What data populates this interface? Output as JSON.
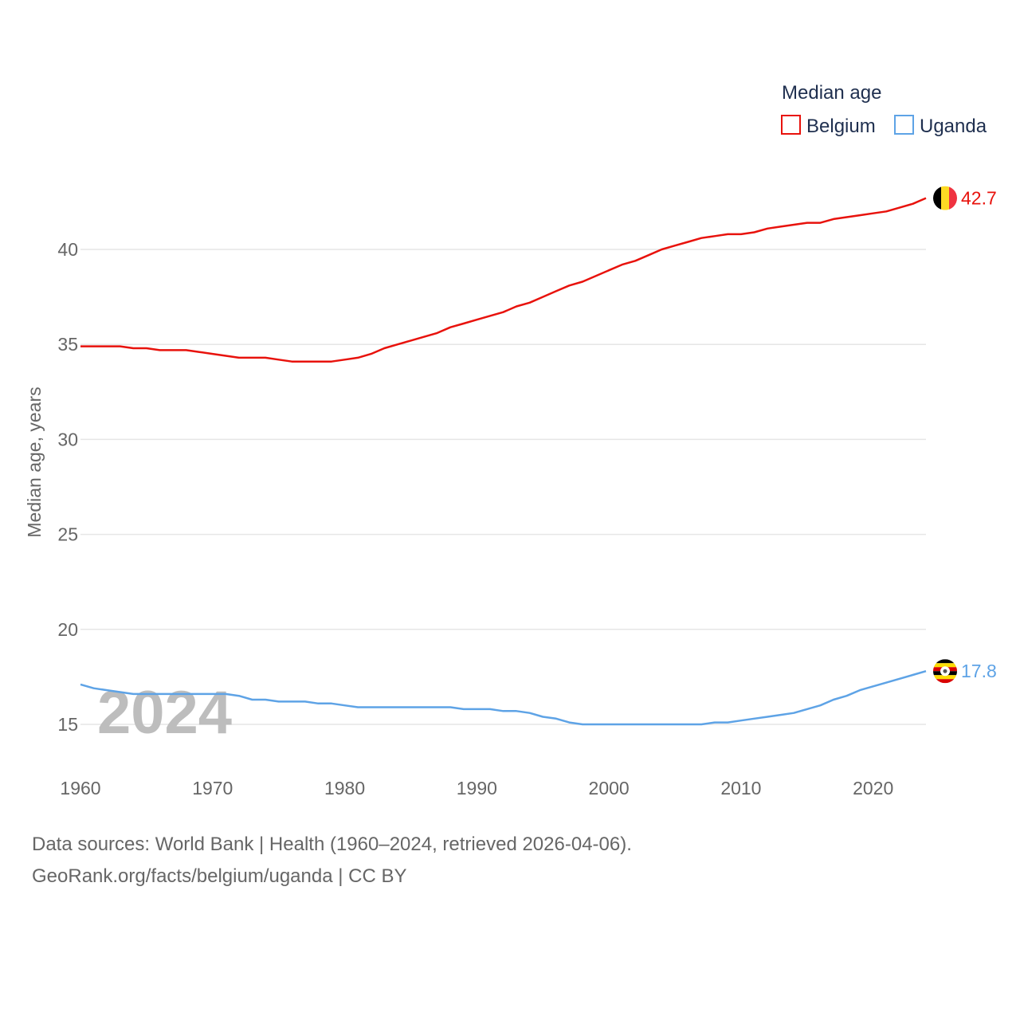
{
  "chart_data": {
    "type": "line",
    "legend_title": "Median age",
    "ylabel": "Median age, years",
    "xlabel": "",
    "xlim": [
      1960,
      2024
    ],
    "ylim": [
      13,
      44
    ],
    "y_ticks": [
      15,
      20,
      25,
      30,
      35,
      40
    ],
    "x_ticks": [
      1960,
      1970,
      1980,
      1990,
      2000,
      2010,
      2020
    ],
    "year_watermark": "2024",
    "grid": true,
    "legend_position": "top-right",
    "series": [
      {
        "name": "Belgium",
        "color": "#e8120c",
        "flag": "belgium-flag-icon",
        "end_label": "42.7",
        "x": [
          1960,
          1961,
          1962,
          1963,
          1964,
          1965,
          1966,
          1967,
          1968,
          1969,
          1970,
          1971,
          1972,
          1973,
          1974,
          1975,
          1976,
          1977,
          1978,
          1979,
          1980,
          1981,
          1982,
          1983,
          1984,
          1985,
          1986,
          1987,
          1988,
          1989,
          1990,
          1991,
          1992,
          1993,
          1994,
          1995,
          1996,
          1997,
          1998,
          1999,
          2000,
          2001,
          2002,
          2003,
          2004,
          2005,
          2006,
          2007,
          2008,
          2009,
          2010,
          2011,
          2012,
          2013,
          2014,
          2015,
          2016,
          2017,
          2018,
          2019,
          2020,
          2021,
          2022,
          2023,
          2024
        ],
        "values": [
          34.9,
          34.9,
          34.9,
          34.9,
          34.8,
          34.8,
          34.7,
          34.7,
          34.7,
          34.6,
          34.5,
          34.4,
          34.3,
          34.3,
          34.3,
          34.2,
          34.1,
          34.1,
          34.1,
          34.1,
          34.2,
          34.3,
          34.5,
          34.8,
          35.0,
          35.2,
          35.4,
          35.6,
          35.9,
          36.1,
          36.3,
          36.5,
          36.7,
          37.0,
          37.2,
          37.5,
          37.8,
          38.1,
          38.3,
          38.6,
          38.9,
          39.2,
          39.4,
          39.7,
          40.0,
          40.2,
          40.4,
          40.6,
          40.7,
          40.8,
          40.8,
          40.9,
          41.1,
          41.2,
          41.3,
          41.4,
          41.4,
          41.6,
          41.7,
          41.8,
          41.9,
          42.0,
          42.2,
          42.4,
          42.7
        ]
      },
      {
        "name": "Uganda",
        "color": "#5ea3e6",
        "flag": "uganda-flag-icon",
        "end_label": "17.8",
        "x": [
          1960,
          1961,
          1962,
          1963,
          1964,
          1965,
          1966,
          1967,
          1968,
          1969,
          1970,
          1971,
          1972,
          1973,
          1974,
          1975,
          1976,
          1977,
          1978,
          1979,
          1980,
          1981,
          1982,
          1983,
          1984,
          1985,
          1986,
          1987,
          1988,
          1989,
          1990,
          1991,
          1992,
          1993,
          1994,
          1995,
          1996,
          1997,
          1998,
          1999,
          2000,
          2001,
          2002,
          2003,
          2004,
          2005,
          2006,
          2007,
          2008,
          2009,
          2010,
          2011,
          2012,
          2013,
          2014,
          2015,
          2016,
          2017,
          2018,
          2019,
          2020,
          2021,
          2022,
          2023,
          2024
        ],
        "values": [
          17.1,
          16.9,
          16.8,
          16.7,
          16.6,
          16.6,
          16.6,
          16.6,
          16.6,
          16.6,
          16.6,
          16.6,
          16.5,
          16.3,
          16.3,
          16.2,
          16.2,
          16.2,
          16.1,
          16.1,
          16.0,
          15.9,
          15.9,
          15.9,
          15.9,
          15.9,
          15.9,
          15.9,
          15.9,
          15.8,
          15.8,
          15.8,
          15.7,
          15.7,
          15.6,
          15.4,
          15.3,
          15.1,
          15.0,
          15.0,
          15.0,
          15.0,
          15.0,
          15.0,
          15.0,
          15.0,
          15.0,
          15.0,
          15.1,
          15.1,
          15.2,
          15.3,
          15.4,
          15.5,
          15.6,
          15.8,
          16.0,
          16.3,
          16.5,
          16.8,
          17.0,
          17.2,
          17.4,
          17.6,
          17.8
        ]
      }
    ]
  },
  "footer": {
    "line1": "Data sources: World Bank | Health (1960–2024, retrieved 2026-04-06).",
    "line2": "GeoRank.org/facts/belgium/uganda | CC BY"
  }
}
